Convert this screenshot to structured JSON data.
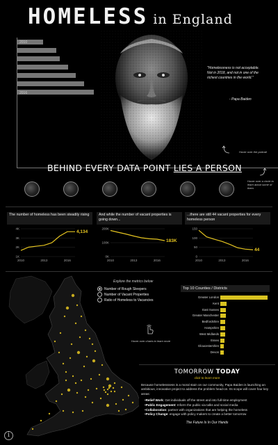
{
  "header": {
    "title_main": "HOMELESS",
    "title_sub": " in England"
  },
  "years_bar": {
    "labels": [
      "2010",
      "2016"
    ],
    "fractions": [
      0.31,
      0.47,
      0.51,
      0.61,
      0.7,
      0.8,
      0.92
    ]
  },
  "portrait": {
    "quote": "\"Homelessness is not acceptable.  Not in 2018, and not in one of the richest countries in the world.\"",
    "author": "- Papa Baiden"
  },
  "hints": {
    "portrait": "Hover over the portrait",
    "circles": "Hover over a circle to learn about some of them",
    "charts": "Hover over charts to learn more"
  },
  "headline": {
    "part1": "BEHIND EVERY DATA POINT ",
    "part2": "LIES A PERSON"
  },
  "panels": [
    {
      "title": "The number of homeless has been steadily rising"
    },
    {
      "title": "And while the number of vacant properties is going down..."
    },
    {
      "title": "...there are still 44 vacant properties for every homeless person"
    }
  ],
  "chart_data": [
    {
      "type": "line",
      "x": [
        2010,
        2011,
        2012,
        2013,
        2014,
        2015,
        2016,
        2017
      ],
      "values": [
        1768,
        2181,
        2309,
        2414,
        2744,
        3569,
        4134,
        4134
      ],
      "x_ticks": [
        "2010",
        "2013",
        "2016"
      ],
      "y_ticks": [
        "1K",
        "2K",
        "3K",
        "4K"
      ],
      "ylim": [
        1000,
        4500
      ],
      "end_label": "4,134",
      "color": "#e6c520"
    },
    {
      "type": "line",
      "x": [
        2010,
        2011,
        2012,
        2013,
        2014,
        2015,
        2016,
        2017
      ],
      "values": [
        300000,
        279000,
        259000,
        236000,
        216000,
        205000,
        200000,
        183000
      ],
      "x_ticks": [
        "2010",
        "2013",
        "2016"
      ],
      "y_ticks": [
        "0K",
        "100K",
        "200K"
      ],
      "ylim": [
        0,
        320000
      ],
      "end_label": "183K",
      "color": "#e6c520"
    },
    {
      "type": "line",
      "x": [
        2010,
        2011,
        2012,
        2013,
        2014,
        2015,
        2016,
        2017
      ],
      "values": [
        170,
        128,
        112,
        98,
        79,
        57,
        48,
        44
      ],
      "x_ticks": [
        "2010",
        "2013",
        "2016"
      ],
      "y_ticks": [
        "0",
        "50",
        "100",
        "150"
      ],
      "ylim": [
        0,
        180
      ],
      "end_label": "44",
      "color": "#e6c520"
    },
    {
      "type": "bar",
      "title": "Top 10 Counties / Districts",
      "categories": [
        "Greater London",
        "Kent",
        "East Sussex",
        "Greater Manchester",
        "Bedfordshire",
        "Hampshire",
        "West Midlands",
        "Essex",
        "Gloucestershire",
        "Devon"
      ],
      "values": [
        1137,
        151,
        139,
        136,
        123,
        119,
        110,
        99,
        91,
        79
      ],
      "color": "#d9c320"
    }
  ],
  "explore": {
    "label": "Explore the metrics below",
    "options": [
      "Number of Rough Sleepers",
      "Number of Vacant Properties",
      "Ratio of Homeless to Vacancies"
    ],
    "selected": 0
  },
  "tomorrow": {
    "head_1": "TOMORROW ",
    "head_2": "TODAY",
    "link": "click to learn more",
    "body": "Because homelessness is a moral stain on our community, Papa Baiden is launching an ambitious, innovative project to address the problem head-on. Its scope will cover four key areas:",
    "items": [
      {
        "bold": "Relief Work",
        "text": ": Get individuals off the street and into full-time employment"
      },
      {
        "bold": "Public Engagement",
        "text": ": Inform the public via talks and social media"
      },
      {
        "bold": "Collaboration",
        "text": ": partner with organizations that are helping the homeless"
      },
      {
        "bold": "Policy Change",
        "text": ": engage with policy makers to create a better tomorrow"
      }
    ],
    "footer": "The Future Is In Our Hands"
  },
  "icons": {
    "info": "i"
  }
}
